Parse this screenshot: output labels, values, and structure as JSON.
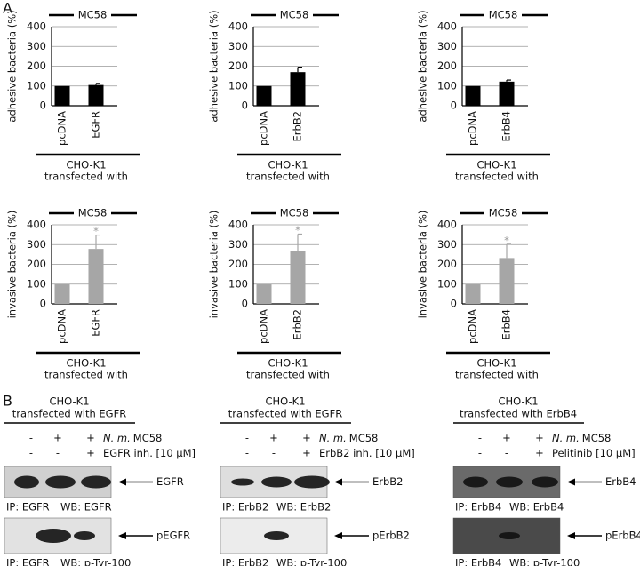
{
  "panel_labels": [
    "A",
    "B"
  ],
  "chart_data": [
    {
      "type": "bar",
      "title": "MC58",
      "y_label": "adhesive bacteria (%)",
      "x_label": [
        "CHO-K1",
        "transfected with"
      ],
      "categories": [
        "pcDNA",
        "EGFR"
      ],
      "values": [
        100,
        105
      ],
      "errors": [
        null,
        8
      ],
      "color": "#000000",
      "ylim": [
        0,
        400
      ],
      "yticks": [
        0,
        100,
        200,
        300,
        400
      ],
      "grid": true
    },
    {
      "type": "bar",
      "title": "MC58",
      "y_label": "adhesive bacteria (%)",
      "x_label": [
        "CHO-K1",
        "transfected with"
      ],
      "categories": [
        "pcDNA",
        "ErbB2"
      ],
      "values": [
        100,
        170
      ],
      "errors": [
        null,
        25
      ],
      "color": "#000000",
      "ylim": [
        0,
        400
      ],
      "yticks": [
        0,
        100,
        200,
        300,
        400
      ],
      "grid": true
    },
    {
      "type": "bar",
      "title": "MC58",
      "y_label": "adhesive bacteria (%)",
      "x_label": [
        "CHO-K1",
        "transfected with"
      ],
      "categories": [
        "pcDNA",
        "ErbB4"
      ],
      "values": [
        100,
        122
      ],
      "errors": [
        null,
        8
      ],
      "color": "#000000",
      "ylim": [
        0,
        400
      ],
      "yticks": [
        0,
        100,
        200,
        300,
        400
      ],
      "grid": true
    },
    {
      "type": "bar",
      "title": "MC58",
      "y_label": "invasive bacteria (%)",
      "x_label": [
        "CHO-K1",
        "transfected with"
      ],
      "categories": [
        "pcDNA",
        "EGFR"
      ],
      "values": [
        100,
        278
      ],
      "errors": [
        null,
        70
      ],
      "significance": [
        null,
        "*"
      ],
      "color": "#a6a6a6",
      "ylim": [
        0,
        400
      ],
      "yticks": [
        0,
        100,
        200,
        300,
        400
      ],
      "grid": true
    },
    {
      "type": "bar",
      "title": "MC58",
      "y_label": "invasive bacteria (%)",
      "x_label": [
        "CHO-K1",
        "transfected with"
      ],
      "categories": [
        "pcDNA",
        "ErbB2"
      ],
      "values": [
        100,
        268
      ],
      "errors": [
        null,
        85
      ],
      "significance": [
        null,
        "*"
      ],
      "color": "#a6a6a6",
      "ylim": [
        0,
        400
      ],
      "yticks": [
        0,
        100,
        200,
        300,
        400
      ],
      "grid": true
    },
    {
      "type": "bar",
      "title": "MC58",
      "y_label": "invasive bacteria (%)",
      "x_label": [
        "CHO-K1",
        "transfected with"
      ],
      "categories": [
        "pcDNA",
        "ErbB4"
      ],
      "values": [
        100,
        232
      ],
      "errors": [
        null,
        70
      ],
      "significance": [
        null,
        "*"
      ],
      "color": "#a6a6a6",
      "ylim": [
        0,
        400
      ],
      "yticks": [
        0,
        100,
        200,
        300,
        400
      ],
      "grid": true
    }
  ],
  "panel_b": [
    {
      "header": [
        "CHO-K1",
        "transfected with EGFR"
      ],
      "conditions": [
        {
          "label_italic": "N. m.",
          "label": "MC58",
          "signs": [
            "-",
            "+",
            "+"
          ]
        },
        {
          "label": "EGFR inh. [10 µM]",
          "signs": [
            "-",
            "-",
            "+"
          ]
        }
      ],
      "blots": [
        {
          "target": "EGFR",
          "ip": "IP: EGFR",
          "wb": "WB: EGFR"
        },
        {
          "target": "pEGFR",
          "ip": "IP: EGFR",
          "wb": "WB: p-Tyr-100"
        }
      ]
    },
    {
      "header": [
        "CHO-K1",
        "transfected with EGFR"
      ],
      "conditions": [
        {
          "label_italic": "N. m.",
          "label": "MC58",
          "signs": [
            "-",
            "+",
            "+"
          ]
        },
        {
          "label": "ErbB2 inh. [10 µM]",
          "signs": [
            "-",
            "-",
            "+"
          ]
        }
      ],
      "blots": [
        {
          "target": "ErbB2",
          "ip": "IP: ErbB2",
          "wb": "WB: ErbB2"
        },
        {
          "target": "pErbB2",
          "ip": "IP: ErbB2",
          "wb": "WB: p-Tyr-100"
        }
      ]
    },
    {
      "header": [
        "CHO-K1",
        "transfected with ErbB4"
      ],
      "conditions": [
        {
          "label_italic": "N. m.",
          "label": "MC58",
          "signs": [
            "-",
            "+",
            "+"
          ]
        },
        {
          "label": "Pelitinib [10 µM]",
          "signs": [
            "-",
            "-",
            "+"
          ]
        }
      ],
      "blots": [
        {
          "target": "ErbB4",
          "ip": "IP: ErbB4",
          "wb": "WB: ErbB4"
        },
        {
          "target": "pErbB4",
          "ip": "IP: ErbB4",
          "wb": "WB: p-Tyr-100"
        }
      ]
    }
  ]
}
